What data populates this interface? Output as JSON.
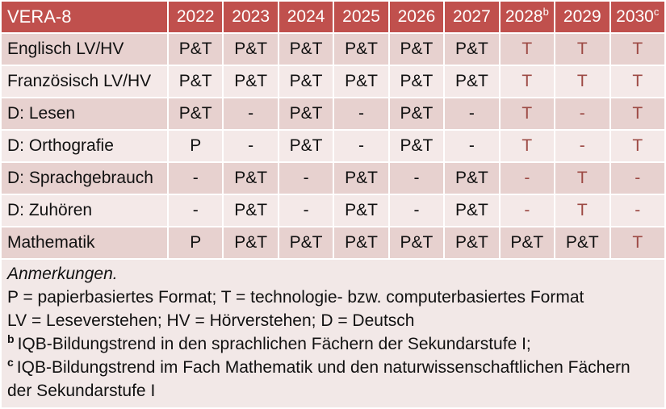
{
  "table": {
    "header": {
      "label": "VERA-8",
      "years": [
        {
          "text": "2022",
          "sup": ""
        },
        {
          "text": "2023",
          "sup": ""
        },
        {
          "text": "2024",
          "sup": ""
        },
        {
          "text": "2025",
          "sup": ""
        },
        {
          "text": "2026",
          "sup": ""
        },
        {
          "text": "2027",
          "sup": ""
        },
        {
          "text": "2028",
          "sup": "b"
        },
        {
          "text": "2029",
          "sup": ""
        },
        {
          "text": "2030",
          "sup": "c"
        }
      ]
    },
    "rows": [
      {
        "label": "Englisch LV/HV",
        "values": [
          "P&T",
          "P&T",
          "P&T",
          "P&T",
          "P&T",
          "P&T",
          "T",
          "T",
          "T"
        ]
      },
      {
        "label": "Französisch LV/HV",
        "values": [
          "P&T",
          "P&T",
          "P&T",
          "P&T",
          "P&T",
          "P&T",
          "T",
          "T",
          "T"
        ]
      },
      {
        "label": "D: Lesen",
        "values": [
          "P&T",
          "-",
          "P&T",
          "-",
          "P&T",
          "-",
          "T",
          "-",
          "T"
        ]
      },
      {
        "label": "D: Orthografie",
        "values": [
          "P",
          "-",
          "P&T",
          "-",
          "P&T",
          "-",
          "T",
          "-",
          "T"
        ]
      },
      {
        "label": "D: Sprachgebrauch",
        "values": [
          "-",
          "P&T",
          "-",
          "P&T",
          "-",
          "P&T",
          "-",
          "T",
          "-"
        ]
      },
      {
        "label": "D: Zuhören",
        "values": [
          "-",
          "P&T",
          "-",
          "P&T",
          "-",
          "P&T",
          "-",
          "T",
          "-"
        ]
      },
      {
        "label": "Mathematik",
        "values": [
          "P",
          "P&T",
          "P&T",
          "P&T",
          "P&T",
          "P&T",
          "P&T",
          "P&T",
          "T"
        ]
      }
    ]
  },
  "notes": {
    "title": "Anmerkungen.",
    "formats": "P = papierbasiertes Format; T = technologie- bzw. computerbasiertes Format",
    "abbreviations": "LV = Leseverstehen; HV = Hörverstehen; D = Deutsch",
    "footnote_b": {
      "marker": "b",
      "text": "IQB-Bildungstrend in den sprachlichen Fächern der Sekundarstufe I;"
    },
    "footnote_c": {
      "marker": "c",
      "text": "IQB-Bildungstrend im Fach Mathematik und den naturwissenschaftlichen Fächern der Sekundarstufe I"
    }
  },
  "colors": {
    "header_bg": "#c0504d",
    "row_dark_bg": "#e7d1cf",
    "row_light_bg": "#f4e9e8",
    "notes_bg": "#f2e8e7",
    "tech_text": "#9d4a45",
    "header_text": "#ffffff",
    "body_text": "#111111",
    "separator": "#ffffff"
  }
}
